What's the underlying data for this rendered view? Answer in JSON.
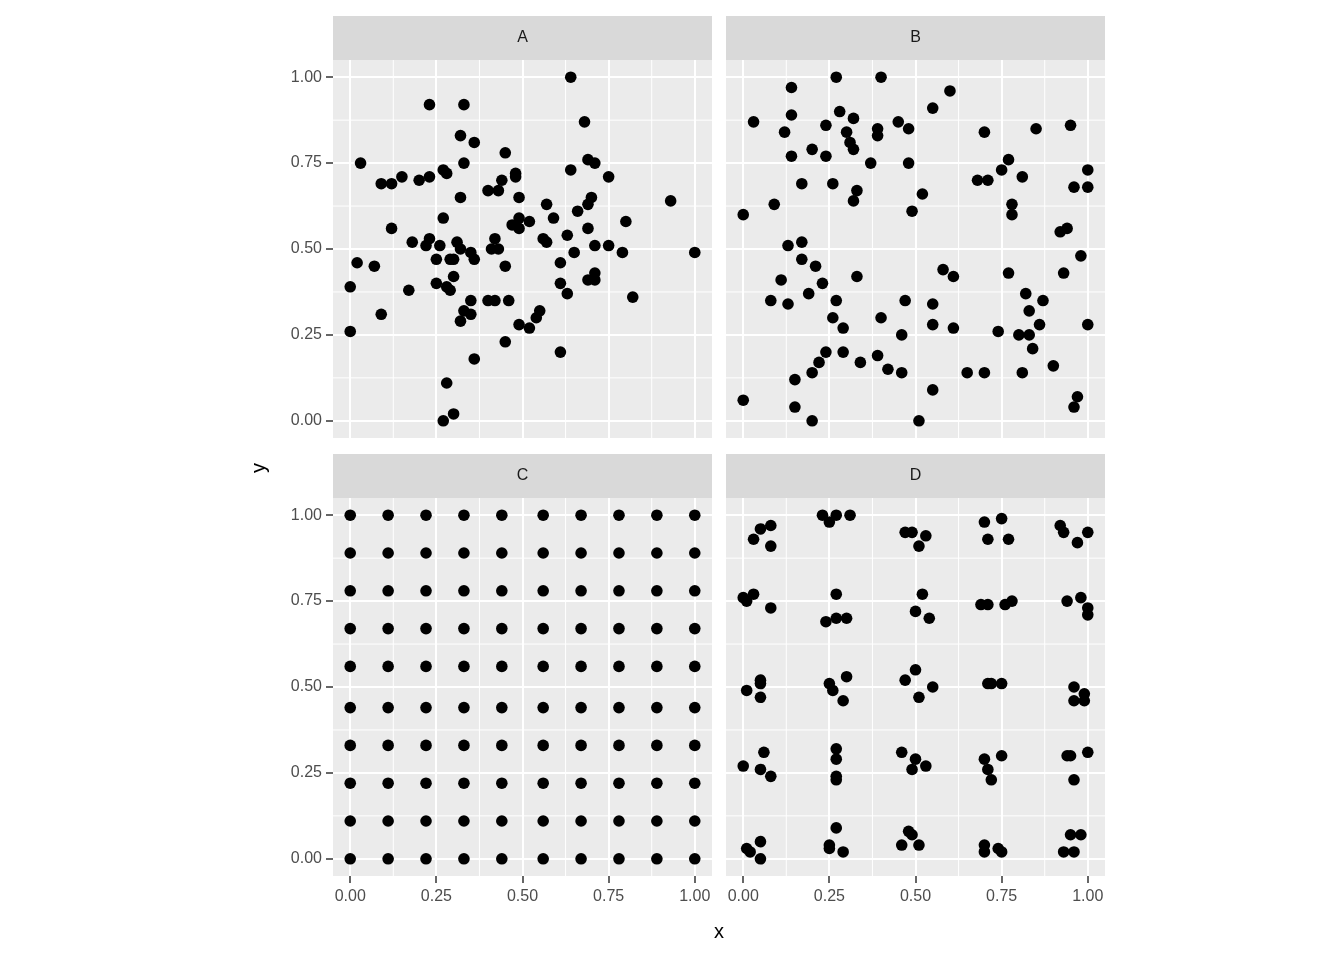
{
  "chart_data": [
    {
      "type": "scatter",
      "title": "A",
      "ylabel": "y",
      "color": "#000000",
      "marker": "circle",
      "grid": true,
      "tick_labels": "y",
      "xlim": [
        -0.05,
        1.05
      ],
      "ylim": [
        -0.05,
        1.05
      ],
      "xticks": [
        0,
        0.25,
        0.5,
        0.75,
        1
      ],
      "yticks": [
        {
          "value": 0,
          "label": "0.00"
        },
        {
          "value": 0.25,
          "label": "0.25"
        },
        {
          "value": 0.5,
          "label": "0.50"
        },
        {
          "value": 0.75,
          "label": "0.75"
        },
        {
          "value": 1,
          "label": "1.00"
        }
      ],
      "x": [
        0.23,
        0.33,
        0.32,
        0.36,
        0.45,
        0.03,
        0.33,
        0.27,
        0.28,
        0.09,
        0.12,
        0.15,
        0.2,
        0.23,
        0.48,
        0.48,
        0.44,
        0.4,
        0.43,
        0.32,
        0.49,
        0.27,
        0.49,
        0.47,
        0.49,
        0.12,
        0.18,
        0.22,
        0.23,
        0.26,
        0.31,
        0.32,
        0.35,
        0.36,
        0.42,
        0.41,
        0.43,
        0.25,
        0.29,
        0.3,
        0.02,
        0.07,
        0.45,
        0.3,
        0.0,
        0.17,
        0.25,
        0.28,
        0.29,
        0.35,
        0.4,
        0.42,
        0.46,
        0.33,
        0.35,
        0.32,
        0.09,
        0.49,
        0.0,
        0.45,
        0.36,
        0.28,
        0.3,
        0.27,
        0.64,
        0.68,
        0.69,
        0.71,
        0.64,
        0.75,
        0.93,
        0.7,
        0.69,
        0.57,
        0.66,
        0.59,
        0.8,
        0.52,
        0.69,
        0.63,
        0.56,
        0.57,
        0.71,
        0.75,
        0.65,
        0.79,
        1.0,
        0.61,
        0.71,
        0.69,
        0.71,
        0.61,
        0.63,
        0.82,
        0.55,
        0.54,
        0.52,
        0.61
      ],
      "values": [
        0.92,
        0.92,
        0.83,
        0.81,
        0.78,
        0.75,
        0.75,
        0.73,
        0.72,
        0.69,
        0.69,
        0.71,
        0.7,
        0.71,
        0.72,
        0.71,
        0.7,
        0.67,
        0.67,
        0.65,
        0.65,
        0.59,
        0.59,
        0.57,
        0.56,
        0.56,
        0.52,
        0.51,
        0.53,
        0.51,
        0.52,
        0.5,
        0.49,
        0.47,
        0.53,
        0.5,
        0.5,
        0.47,
        0.47,
        0.47,
        0.46,
        0.45,
        0.45,
        0.42,
        0.39,
        0.38,
        0.4,
        0.39,
        0.38,
        0.35,
        0.35,
        0.35,
        0.35,
        0.32,
        0.31,
        0.29,
        0.31,
        0.28,
        0.26,
        0.23,
        0.18,
        0.11,
        0.02,
        0.0,
        1.0,
        0.87,
        0.76,
        0.75,
        0.73,
        0.71,
        0.64,
        0.65,
        0.63,
        0.63,
        0.61,
        0.59,
        0.58,
        0.58,
        0.56,
        0.54,
        0.53,
        0.52,
        0.51,
        0.51,
        0.49,
        0.49,
        0.49,
        0.46,
        0.43,
        0.41,
        0.41,
        0.4,
        0.37,
        0.36,
        0.32,
        0.3,
        0.27,
        0.2
      ]
    },
    {
      "type": "scatter",
      "title": "B",
      "color": "#000000",
      "marker": "circle",
      "grid": true,
      "tick_labels": false,
      "xlim": [
        -0.05,
        1.05
      ],
      "ylim": [
        -0.05,
        1.05
      ],
      "xticks": [
        0,
        0.25,
        0.5,
        0.75,
        1
      ],
      "yticks": [
        0,
        0.25,
        0.5,
        0.75,
        1
      ],
      "x": [
        0.27,
        0.4,
        0.14,
        0.03,
        0.14,
        0.12,
        0.28,
        0.32,
        0.24,
        0.3,
        0.39,
        0.39,
        0.45,
        0.48,
        0.31,
        0.32,
        0.2,
        0.14,
        0.24,
        0.37,
        0.48,
        0.17,
        0.26,
        0.33,
        0.32,
        0.09,
        0.0,
        0.49,
        0.13,
        0.17,
        0.17,
        0.21,
        0.11,
        0.33,
        0.23,
        0.19,
        0.08,
        0.13,
        0.27,
        0.47,
        0.26,
        0.29,
        0.4,
        0.46,
        0.24,
        0.22,
        0.29,
        0.34,
        0.39,
        0.42,
        0.46,
        0.2,
        0.15,
        0.0,
        0.15,
        0.2,
        0.51,
        0.6,
        0.55,
        0.7,
        0.85,
        0.95,
        0.77,
        0.75,
        0.68,
        0.71,
        0.81,
        1.0,
        0.96,
        1.0,
        0.52,
        0.78,
        0.78,
        0.92,
        0.94,
        0.98,
        0.58,
        0.61,
        0.77,
        0.93,
        0.55,
        0.55,
        0.61,
        0.82,
        0.87,
        0.83,
        0.86,
        0.74,
        0.8,
        0.83,
        1.0,
        0.84,
        0.65,
        0.7,
        0.81,
        0.9,
        0.55,
        0.97,
        0.96
      ],
      "values": [
        1.0,
        1.0,
        0.97,
        0.87,
        0.89,
        0.84,
        0.9,
        0.88,
        0.86,
        0.84,
        0.85,
        0.83,
        0.87,
        0.85,
        0.81,
        0.79,
        0.79,
        0.77,
        0.77,
        0.75,
        0.75,
        0.69,
        0.69,
        0.67,
        0.64,
        0.63,
        0.6,
        0.61,
        0.51,
        0.52,
        0.47,
        0.45,
        0.41,
        0.42,
        0.4,
        0.37,
        0.35,
        0.34,
        0.35,
        0.35,
        0.3,
        0.27,
        0.3,
        0.25,
        0.2,
        0.17,
        0.2,
        0.17,
        0.19,
        0.15,
        0.14,
        0.14,
        0.12,
        0.06,
        0.04,
        0.0,
        0.0,
        0.96,
        0.91,
        0.84,
        0.85,
        0.86,
        0.76,
        0.73,
        0.7,
        0.7,
        0.71,
        0.73,
        0.68,
        0.68,
        0.66,
        0.63,
        0.6,
        0.55,
        0.56,
        0.48,
        0.44,
        0.42,
        0.43,
        0.43,
        0.34,
        0.28,
        0.27,
        0.37,
        0.35,
        0.32,
        0.28,
        0.26,
        0.25,
        0.25,
        0.28,
        0.21,
        0.14,
        0.14,
        0.14,
        0.16,
        0.09,
        0.07,
        0.04
      ]
    },
    {
      "type": "scatter",
      "title": "C",
      "xlabel": "x",
      "color": "#000000",
      "marker": "circle",
      "grid": true,
      "xlim": [
        -0.05,
        1.05
      ],
      "ylim": [
        -0.05,
        1.05
      ],
      "xticks": [
        {
          "value": 0,
          "label": "0.00"
        },
        {
          "value": 0.25,
          "label": "0.25"
        },
        {
          "value": 0.5,
          "label": "0.50"
        },
        {
          "value": 0.75,
          "label": "0.75"
        },
        {
          "value": 1,
          "label": "1.00"
        }
      ],
      "yticks": [
        {
          "value": 0,
          "label": "0.00"
        },
        {
          "value": 0.25,
          "label": "0.25"
        },
        {
          "value": 0.5,
          "label": "0.50"
        },
        {
          "value": 0.75,
          "label": "0.75"
        },
        {
          "value": 1,
          "label": "1.00"
        }
      ],
      "x": [
        0,
        0,
        0,
        0,
        0,
        0,
        0,
        0,
        0,
        0,
        0.11,
        0.11,
        0.11,
        0.11,
        0.11,
        0.11,
        0.11,
        0.11,
        0.11,
        0.11,
        0.22,
        0.22,
        0.22,
        0.22,
        0.22,
        0.22,
        0.22,
        0.22,
        0.22,
        0.22,
        0.33,
        0.33,
        0.33,
        0.33,
        0.33,
        0.33,
        0.33,
        0.33,
        0.33,
        0.33,
        0.44,
        0.44,
        0.44,
        0.44,
        0.44,
        0.44,
        0.44,
        0.44,
        0.44,
        0.44,
        0.56,
        0.56,
        0.56,
        0.56,
        0.56,
        0.56,
        0.56,
        0.56,
        0.56,
        0.56,
        0.67,
        0.67,
        0.67,
        0.67,
        0.67,
        0.67,
        0.67,
        0.67,
        0.67,
        0.67,
        0.78,
        0.78,
        0.78,
        0.78,
        0.78,
        0.78,
        0.78,
        0.78,
        0.78,
        0.78,
        0.89,
        0.89,
        0.89,
        0.89,
        0.89,
        0.89,
        0.89,
        0.89,
        0.89,
        0.89,
        1,
        1,
        1,
        1,
        1,
        1,
        1,
        1,
        1,
        1
      ],
      "values": [
        0,
        0.11,
        0.22,
        0.33,
        0.44,
        0.56,
        0.67,
        0.78,
        0.89,
        1,
        0,
        0.11,
        0.22,
        0.33,
        0.44,
        0.56,
        0.67,
        0.78,
        0.89,
        1,
        0,
        0.11,
        0.22,
        0.33,
        0.44,
        0.56,
        0.67,
        0.78,
        0.89,
        1,
        0,
        0.11,
        0.22,
        0.33,
        0.44,
        0.56,
        0.67,
        0.78,
        0.89,
        1,
        0,
        0.11,
        0.22,
        0.33,
        0.44,
        0.56,
        0.67,
        0.78,
        0.89,
        1,
        0,
        0.11,
        0.22,
        0.33,
        0.44,
        0.56,
        0.67,
        0.78,
        0.89,
        1,
        0,
        0.11,
        0.22,
        0.33,
        0.44,
        0.56,
        0.67,
        0.78,
        0.89,
        1,
        0,
        0.11,
        0.22,
        0.33,
        0.44,
        0.56,
        0.67,
        0.78,
        0.89,
        1,
        0,
        0.11,
        0.22,
        0.33,
        0.44,
        0.56,
        0.67,
        0.78,
        0.89,
        1,
        0,
        0.11,
        0.22,
        0.33,
        0.44,
        0.56,
        0.67,
        0.78,
        0.89,
        1
      ]
    },
    {
      "type": "scatter",
      "title": "D",
      "color": "#000000",
      "marker": "circle",
      "grid": true,
      "tick_labels": "x",
      "xlim": [
        -0.05,
        1.05
      ],
      "ylim": [
        -0.05,
        1.05
      ],
      "xticks": [
        {
          "value": 0,
          "label": "0.00"
        },
        {
          "value": 0.25,
          "label": "0.25"
        },
        {
          "value": 0.5,
          "label": "0.50"
        },
        {
          "value": 0.75,
          "label": "0.75"
        },
        {
          "value": 1,
          "label": "1.00"
        }
      ],
      "yticks": [
        0,
        0.25,
        0.5,
        0.75,
        1
      ],
      "x": [
        0.05,
        0.08,
        0.03,
        0.08,
        0.23,
        0.27,
        0.25,
        0.31,
        0.47,
        0.49,
        0.53,
        0.51,
        0.7,
        0.75,
        0.71,
        0.77,
        0.92,
        0.93,
        0.97,
        1.0,
        0.0,
        0.01,
        0.03,
        0.08,
        0.27,
        0.24,
        0.27,
        0.3,
        0.52,
        0.5,
        0.54,
        0.69,
        0.71,
        0.76,
        0.78,
        0.94,
        0.98,
        1.0,
        1.0,
        0.01,
        0.05,
        0.05,
        0.05,
        0.25,
        0.26,
        0.29,
        0.3,
        0.5,
        0.47,
        0.55,
        0.51,
        0.71,
        0.72,
        0.75,
        0.96,
        0.99,
        0.96,
        0.99,
        0.06,
        0.0,
        0.05,
        0.08,
        0.27,
        0.27,
        0.27,
        0.27,
        0.46,
        0.5,
        0.53,
        0.49,
        0.7,
        0.71,
        0.72,
        0.75,
        0.94,
        0.95,
        1.0,
        0.96,
        0.01,
        0.02,
        0.05,
        0.05,
        0.27,
        0.25,
        0.25,
        0.29,
        0.48,
        0.49,
        0.46,
        0.51,
        0.7,
        0.7,
        0.74,
        0.75,
        0.95,
        0.98,
        0.93,
        0.96
      ],
      "values": [
        0.96,
        0.97,
        0.93,
        0.91,
        1.0,
        1.0,
        0.98,
        1.0,
        0.95,
        0.95,
        0.94,
        0.91,
        0.98,
        0.99,
        0.93,
        0.93,
        0.97,
        0.95,
        0.92,
        0.95,
        0.76,
        0.75,
        0.77,
        0.73,
        0.77,
        0.69,
        0.7,
        0.7,
        0.77,
        0.72,
        0.7,
        0.74,
        0.74,
        0.74,
        0.75,
        0.75,
        0.76,
        0.73,
        0.71,
        0.49,
        0.52,
        0.51,
        0.47,
        0.51,
        0.49,
        0.46,
        0.53,
        0.55,
        0.52,
        0.5,
        0.47,
        0.51,
        0.51,
        0.51,
        0.5,
        0.48,
        0.46,
        0.46,
        0.31,
        0.27,
        0.26,
        0.24,
        0.32,
        0.29,
        0.24,
        0.23,
        0.31,
        0.29,
        0.27,
        0.26,
        0.29,
        0.26,
        0.23,
        0.3,
        0.3,
        0.3,
        0.31,
        0.23,
        0.03,
        0.02,
        0.05,
        0.0,
        0.09,
        0.04,
        0.03,
        0.02,
        0.08,
        0.07,
        0.04,
        0.04,
        0.04,
        0.02,
        0.03,
        0.02,
        0.07,
        0.07,
        0.02,
        0.02
      ]
    }
  ]
}
